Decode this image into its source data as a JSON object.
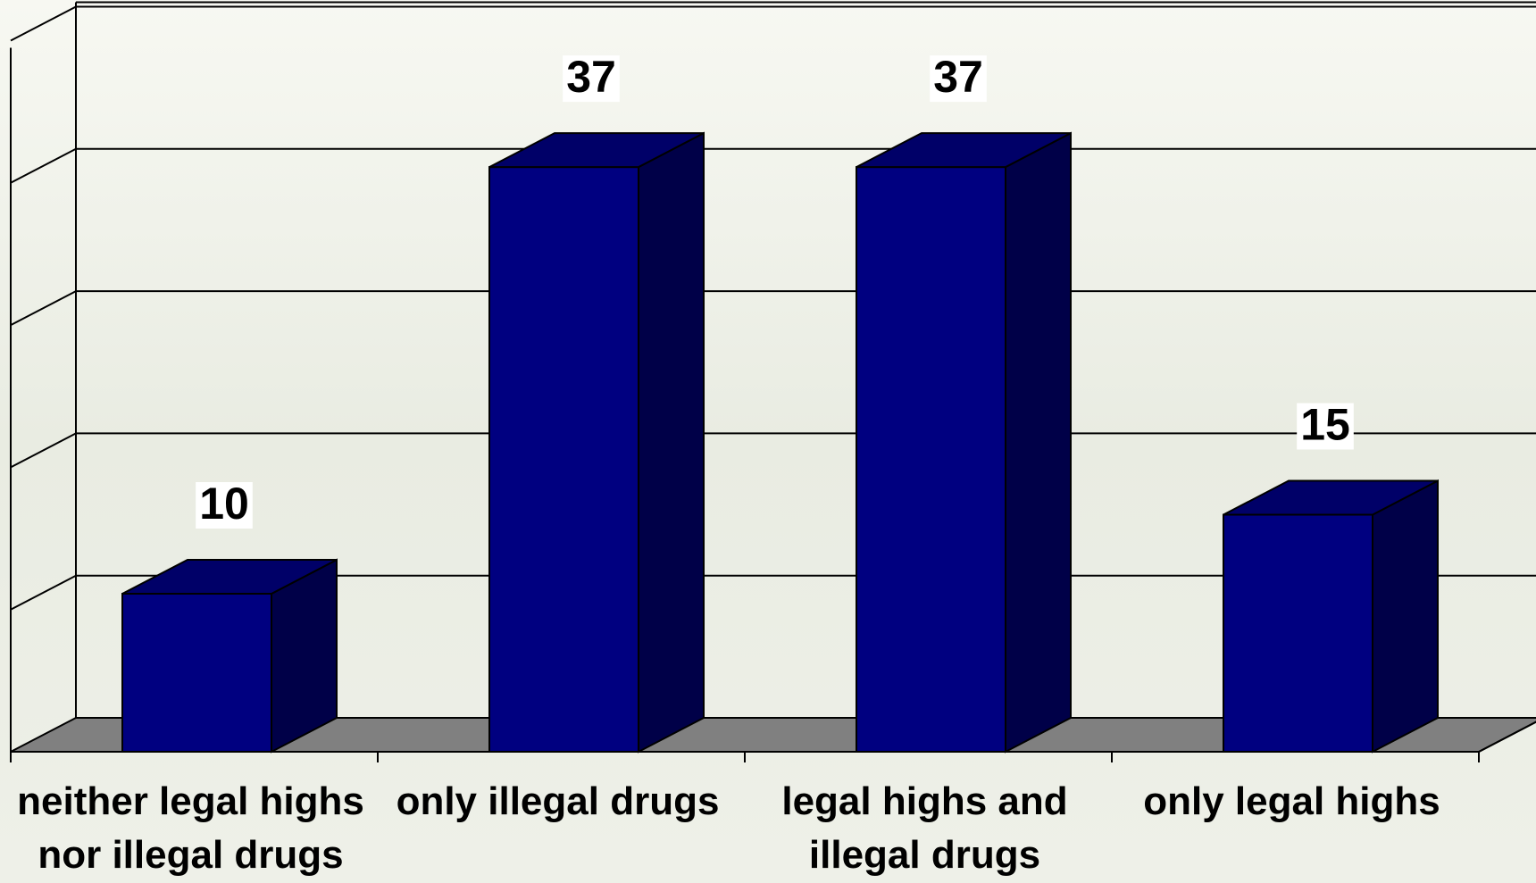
{
  "chart_data": {
    "type": "bar",
    "categories": [
      [
        "neither legal highs",
        "nor illegal drugs"
      ],
      [
        "only illegal drugs"
      ],
      [
        "legal highs and",
        "illegal drugs"
      ],
      [
        "only legal highs"
      ]
    ],
    "values": [
      10,
      37,
      37,
      15
    ],
    "title": "",
    "xlabel": "",
    "ylabel": "",
    "ylim": [
      0,
      45
    ],
    "grid": true,
    "legend": "none",
    "three_d": true,
    "colors": {
      "bar_front": "#000080",
      "bar_side": "#000048",
      "bar_top": "#000068",
      "floor": "#808080",
      "gridline": "#000000",
      "background": "#eef0e8"
    }
  }
}
